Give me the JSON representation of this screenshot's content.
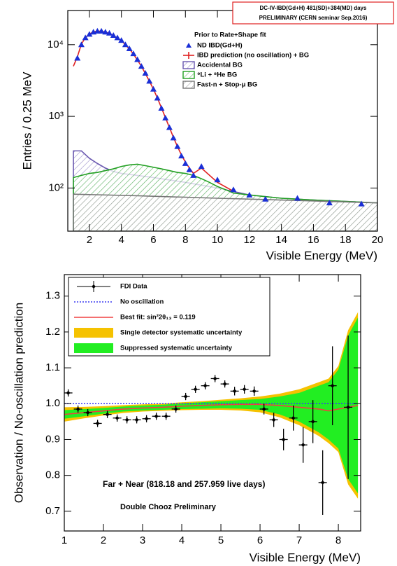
{
  "chart_data": [
    {
      "type": "line",
      "log_y": true,
      "xlabel": "Visible Energy (MeV)",
      "ylabel": "Entries / 0.25 MeV",
      "legend_title": "Prior to Rate+Shape fit",
      "annotations": [
        {
          "text": "DC-IV-IBD(Gd+H)  481(SD)+384(MD) days",
          "color": "#e02020"
        },
        {
          "text": "PRELIMINARY (CERN seminar Sep.2016)",
          "color": "#e02020"
        }
      ],
      "xlim": [
        0.65,
        20
      ],
      "xticks": [
        2,
        4,
        6,
        8,
        10,
        12,
        14,
        16,
        18,
        20
      ],
      "ylim": [
        25,
        30000
      ],
      "yticks": [
        {
          "value": 100,
          "label": "10²"
        },
        {
          "value": 1000,
          "label": "10³"
        },
        {
          "value": 10000,
          "label": "10⁴"
        }
      ],
      "series": [
        {
          "name": "ND IBD(Gd+H)",
          "kind": "points",
          "marker": "triangle",
          "color": "#1a2fd6",
          "x": [
            1.25,
            1.5,
            1.75,
            2,
            2.25,
            2.5,
            2.75,
            3,
            3.25,
            3.5,
            3.75,
            4,
            4.25,
            4.5,
            4.75,
            5,
            5.25,
            5.5,
            5.75,
            6,
            6.25,
            6.5,
            6.75,
            7,
            7.25,
            7.5,
            7.75,
            8,
            8.25,
            8.5,
            9,
            10,
            11,
            12,
            13,
            15,
            17,
            19
          ],
          "values": [
            6500,
            10000,
            12500,
            14000,
            15000,
            15500,
            15500,
            15000,
            14500,
            13500,
            12500,
            11500,
            10000,
            8800,
            7500,
            6200,
            5000,
            4000,
            3100,
            2400,
            1800,
            1300,
            950,
            700,
            500,
            380,
            280,
            220,
            180,
            150,
            200,
            130,
            95,
            80,
            70,
            72,
            62,
            60
          ]
        },
        {
          "name": "IBD prediction (no oscillation) + BG",
          "kind": "line",
          "color": "#e02020",
          "x": [
            1,
            1.25,
            1.5,
            1.75,
            2,
            2.25,
            2.5,
            2.75,
            3,
            3.25,
            3.5,
            3.75,
            4,
            4.25,
            4.5,
            4.75,
            5,
            5.25,
            5.5,
            5.75,
            6,
            6.25,
            6.5,
            6.75,
            7,
            7.25,
            7.5,
            7.75,
            8,
            8.25,
            8.5,
            9,
            10,
            11
          ],
          "values": [
            5000,
            6800,
            10200,
            12600,
            14100,
            15100,
            15500,
            15400,
            15000,
            14400,
            13400,
            12400,
            11400,
            10000,
            8700,
            7400,
            6100,
            5000,
            3950,
            3100,
            2400,
            1800,
            1320,
            960,
            700,
            510,
            380,
            290,
            230,
            190,
            160,
            190,
            120,
            90
          ]
        },
        {
          "name": "Accidental BG",
          "kind": "area",
          "color": "#6a58b0",
          "x": [
            1,
            1.5,
            2,
            2.5,
            3,
            3.5,
            4,
            5,
            6,
            8,
            10,
            12,
            14,
            16,
            18,
            20
          ],
          "values": [
            330,
            330,
            260,
            220,
            190,
            170,
            160,
            150,
            140,
            120,
            100,
            80,
            72,
            68,
            65,
            62
          ]
        },
        {
          "name": "⁹Li + ⁸He BG",
          "kind": "area",
          "color": "#22a022",
          "x": [
            1,
            1.5,
            2,
            2.5,
            3,
            3.5,
            4,
            4.5,
            5,
            5.5,
            6,
            6.5,
            7,
            7.5,
            8,
            8.5,
            9,
            9.5,
            10,
            10.5,
            11,
            12,
            14,
            16,
            18,
            20
          ],
          "values": [
            140,
            150,
            160,
            165,
            175,
            185,
            200,
            210,
            215,
            205,
            195,
            185,
            175,
            165,
            160,
            150,
            135,
            120,
            105,
            95,
            85,
            80,
            72,
            68,
            65,
            62
          ]
        },
        {
          "name": "Fast-n + Stop-μ BG",
          "kind": "area",
          "color": "#777777",
          "x": [
            1,
            5,
            10,
            15,
            20
          ],
          "values": [
            82,
            78,
            72,
            67,
            62
          ]
        }
      ]
    },
    {
      "type": "errorbar",
      "log_y": false,
      "xlabel": "Visible Energy (MeV)",
      "ylabel": "Observation / No-oscillation prediction",
      "annotations": [
        {
          "text": "Far + Near (818.18 and 257.959 live days)",
          "color": "#000000"
        },
        {
          "text": "Double Chooz Preliminary",
          "color": "#e02020"
        }
      ],
      "xlim": [
        1,
        8.57
      ],
      "xticks": [
        1,
        2,
        3,
        4,
        5,
        6,
        7,
        8
      ],
      "ylim": [
        0.645,
        1.36
      ],
      "yticks": [
        0.7,
        0.8,
        0.9,
        {
          "value": 1,
          "label": "1.0"
        },
        1.1,
        1.2,
        1.3
      ],
      "series": [
        {
          "name": "FDI Data",
          "kind": "points",
          "marker": "cross",
          "color": "#000000",
          "x": [
            1.1,
            1.35,
            1.6,
            1.85,
            2.1,
            2.35,
            2.6,
            2.85,
            3.1,
            3.35,
            3.6,
            3.85,
            4.1,
            4.35,
            4.6,
            4.85,
            5.1,
            5.35,
            5.6,
            5.85,
            6.1,
            6.35,
            6.6,
            6.85,
            7.1,
            7.35,
            7.6,
            7.85,
            8.25
          ],
          "values": [
            1.03,
            0.985,
            0.975,
            0.945,
            0.97,
            0.96,
            0.955,
            0.955,
            0.958,
            0.965,
            0.965,
            0.985,
            1.02,
            1.04,
            1.05,
            1.07,
            1.055,
            1.035,
            1.04,
            1.035,
            0.985,
            0.955,
            0.9,
            0.96,
            0.885,
            0.95,
            0.78,
            1.05,
            0.99
          ],
          "errors": [
            0.01,
            0.01,
            0.01,
            0.01,
            0.01,
            0.01,
            0.01,
            0.01,
            0.01,
            0.01,
            0.01,
            0.01,
            0.01,
            0.01,
            0.01,
            0.01,
            0.01,
            0.012,
            0.012,
            0.013,
            0.015,
            0.02,
            0.03,
            0.035,
            0.05,
            0.06,
            0.09,
            0.11,
            0.2
          ]
        },
        {
          "name": "No oscillation",
          "kind": "line",
          "dash": true,
          "color": "#3a3af0",
          "x": [
            1,
            8.5
          ],
          "values": [
            1,
            1
          ]
        },
        {
          "name": "Best fit: sin²2θ₁₃ = 0.119",
          "kind": "line",
          "color": "#f04040",
          "x": [
            1,
            1.5,
            2,
            2.5,
            3,
            3.5,
            4,
            4.5,
            5,
            5.5,
            6,
            6.5,
            7,
            7.5,
            7.75,
            8,
            8.25,
            8.5
          ],
          "values": [
            0.97,
            0.975,
            0.98,
            0.985,
            0.988,
            0.99,
            0.993,
            0.995,
            0.997,
            0.998,
            0.998,
            0.995,
            0.99,
            0.985,
            0.98,
            0.985,
            0.99,
            0.995
          ]
        },
        {
          "name": "Single detector systematic uncertainty",
          "kind": "band",
          "color": "#f5c200",
          "x": [
            1,
            1.5,
            2,
            2.5,
            3,
            3.5,
            4,
            4.5,
            5,
            5.5,
            6,
            6.5,
            7,
            7.5,
            7.75,
            8,
            8.25,
            8.5
          ],
          "lower": [
            0.95,
            0.959,
            0.967,
            0.974,
            0.978,
            0.98,
            0.982,
            0.983,
            0.983,
            0.981,
            0.976,
            0.962,
            0.94,
            0.91,
            0.89,
            0.865,
            0.775,
            0.735
          ],
          "upper": [
            0.99,
            0.991,
            0.993,
            0.996,
            0.998,
            1.0,
            1.004,
            1.007,
            1.011,
            1.015,
            1.02,
            1.028,
            1.04,
            1.06,
            1.07,
            1.105,
            1.205,
            1.255
          ]
        },
        {
          "name": "Suppressed systematic uncertainty",
          "kind": "band",
          "color": "#22ee22",
          "x": [
            1,
            1.5,
            2,
            2.5,
            3,
            3.5,
            4,
            4.5,
            5,
            5.5,
            6,
            6.5,
            7,
            7.5,
            7.75,
            8,
            8.25,
            8.5
          ],
          "lower": [
            0.958,
            0.965,
            0.972,
            0.978,
            0.981,
            0.983,
            0.985,
            0.986,
            0.987,
            0.986,
            0.983,
            0.97,
            0.95,
            0.92,
            0.9,
            0.875,
            0.79,
            0.75
          ],
          "upper": [
            0.982,
            0.985,
            0.988,
            0.992,
            0.995,
            0.997,
            1.001,
            1.004,
            1.007,
            1.01,
            1.013,
            1.02,
            1.03,
            1.05,
            1.06,
            1.095,
            1.19,
            1.24
          ]
        }
      ]
    }
  ]
}
